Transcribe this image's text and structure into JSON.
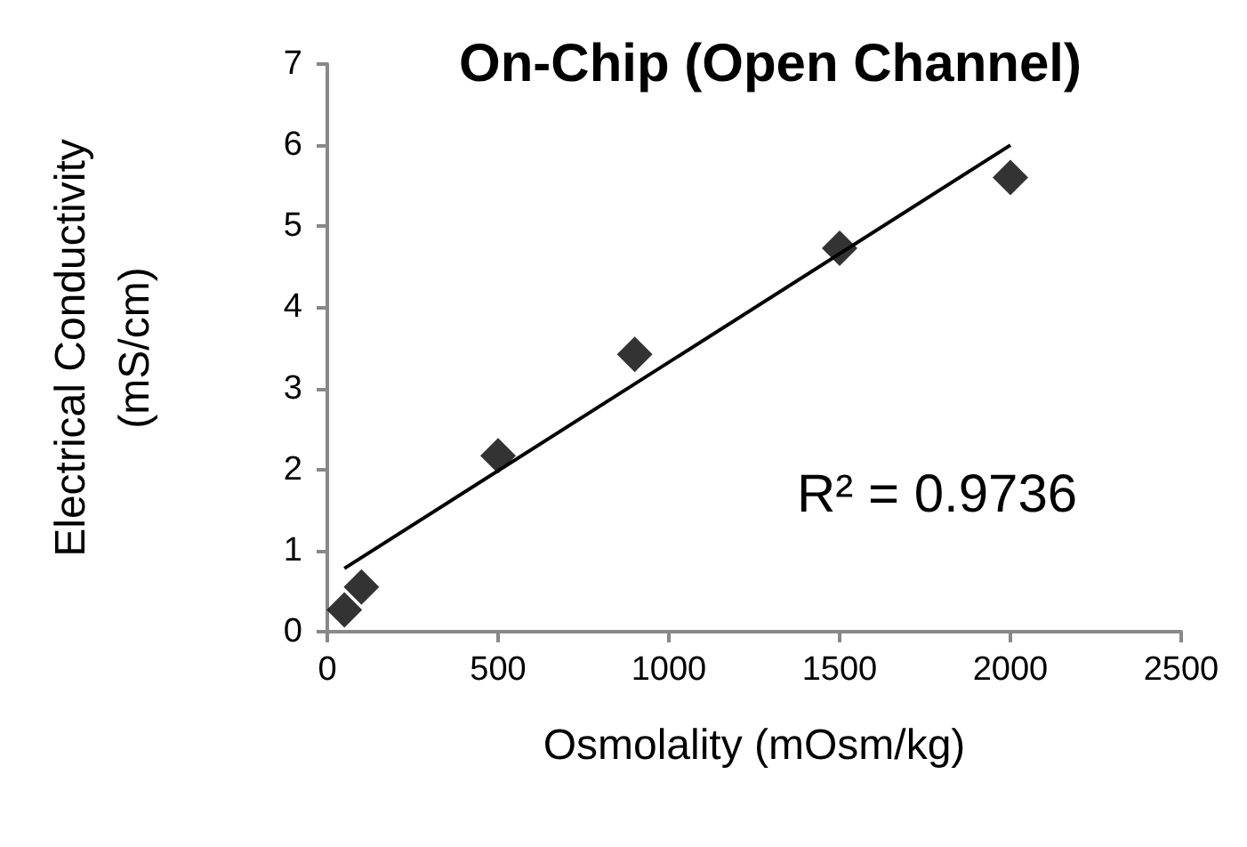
{
  "chart_data": {
    "type": "scatter",
    "title": "On-Chip (Open Channel)",
    "xlabel": "Osmolality (mOsm/kg)",
    "ylabel": "Electrical Conductivity\n(mS/cm)",
    "x": [
      50,
      100,
      500,
      900,
      1500,
      2000
    ],
    "series": [
      {
        "color": "#000000",
        "values": [
          0.27,
          0.55,
          2.17,
          3.42,
          4.73,
          5.6
        ],
        "marker": "diamond"
      },
      {
        "type": "line",
        "color": "#000000",
        "x": [
          50,
          2000
        ],
        "values": [
          0.78,
          6.0
        ],
        "marker": "none",
        "line_style": "solid"
      }
    ],
    "annotations": [
      "R² = 0.9736"
    ],
    "xlim": [
      0,
      2500
    ],
    "xticks": [
      0,
      500,
      1000,
      1500,
      2000,
      2500
    ],
    "ylim": [
      0,
      7
    ],
    "yticks": [
      0,
      1,
      2,
      3,
      4,
      5,
      6,
      7
    ],
    "grid": false
  }
}
